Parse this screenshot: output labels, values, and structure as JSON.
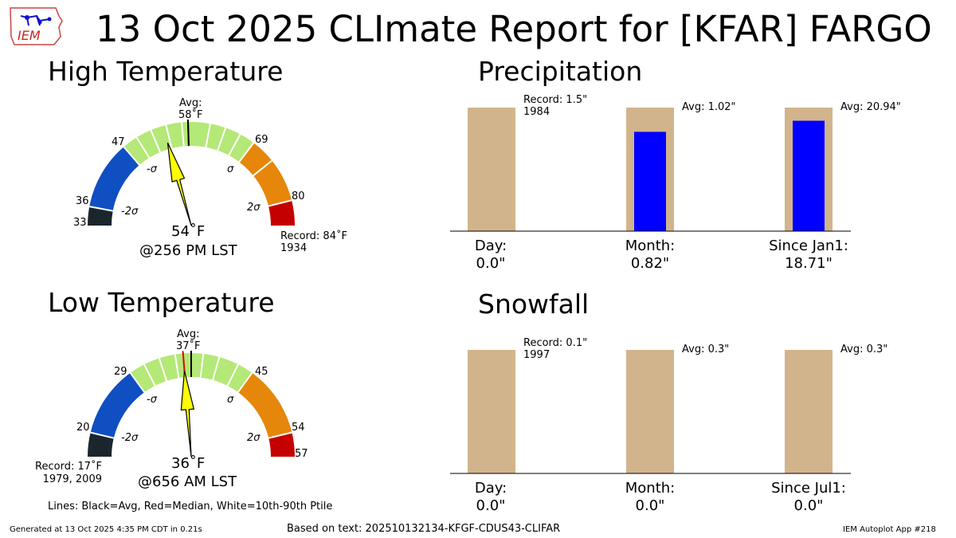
{
  "header": {
    "title": "13 Oct 2025 CLImate Report for [KFAR] FARGO",
    "logo_text": "IEM"
  },
  "high_temp": {
    "title": "High Temperature",
    "avg_label": "Avg:",
    "avg_value": "58$^\\circ$F",
    "avg_text": "58˚F",
    "ticks": [
      {
        "label": "33",
        "value": 33
      },
      {
        "label": "36",
        "value": 36
      },
      {
        "label": "47",
        "value": 47
      },
      {
        "label": "69",
        "value": 69
      },
      {
        "label": "80",
        "value": 80
      }
    ],
    "sigma_labels": {
      "m2": "-2σ",
      "m1": "-σ",
      "p1": "σ",
      "p2": "2σ"
    },
    "observed_text": "54˚F",
    "observed_value": 54,
    "time_text": "@256 PM LST",
    "record_text": "Record: 84˚F",
    "record_year": "1934",
    "range_min": 33,
    "range_max": 84,
    "bands": [
      {
        "from": 33,
        "to": 36,
        "color": "#1b262c"
      },
      {
        "from": 36,
        "to": 47,
        "color": "#0f4fc1"
      },
      {
        "from": 47,
        "to": 69,
        "color": "#b4e877"
      },
      {
        "from": 69,
        "to": 73,
        "color": "#e6860a"
      },
      {
        "from": 73,
        "to": 80,
        "color": "#e6860a"
      },
      {
        "from": 80,
        "to": 84,
        "color": "#c40000"
      }
    ],
    "avg": 58,
    "median": 58,
    "white_lines": [
      49.5,
      52,
      54.5,
      57,
      61.5,
      64,
      66.5
    ]
  },
  "low_temp": {
    "title": "Low Temperature",
    "avg_label": "Avg:",
    "avg_text": "37˚F",
    "ticks": [
      {
        "label": "20",
        "value": 20
      },
      {
        "label": "29",
        "value": 29
      },
      {
        "label": "45",
        "value": 45
      },
      {
        "label": "54",
        "value": 54
      },
      {
        "label": "57",
        "value": 57
      }
    ],
    "sigma_labels": {
      "m2": "-2σ",
      "m1": "-σ",
      "p1": "σ",
      "p2": "2σ"
    },
    "observed_text": "36˚F",
    "observed_value": 36,
    "time_text": "@656 AM LST",
    "record_text": "Record: 17˚F",
    "record_year": "1979, 2009",
    "range_min": 17,
    "range_max": 57,
    "bands": [
      {
        "from": 17,
        "to": 20,
        "color": "#1b262c"
      },
      {
        "from": 20,
        "to": 29,
        "color": "#0f4fc1"
      },
      {
        "from": 29,
        "to": 45,
        "color": "#b4e877"
      },
      {
        "from": 45,
        "to": 54,
        "color": "#e6860a"
      },
      {
        "from": 54,
        "to": 57,
        "color": "#c40000"
      }
    ],
    "avg": 37,
    "median": 36,
    "white_lines": [
      31,
      33,
      35,
      38.5,
      40.5,
      43
    ]
  },
  "precip": {
    "title": "Precipitation",
    "annotations": [
      "Record: 1.5\"",
      "1984",
      "Avg: 1.02\"",
      "Avg: 20.94\""
    ],
    "labels": [
      {
        "name": "Day:",
        "value": "0.0\""
      },
      {
        "name": "Month:",
        "value": "0.82\""
      },
      {
        "name": "Since Jan1:",
        "value": "18.71\""
      }
    ]
  },
  "snow": {
    "title": "Snowfall",
    "annotations": [
      "Record: 0.1\"",
      "1997",
      "Avg: 0.3\"",
      "Avg: 0.3\""
    ],
    "labels": [
      {
        "name": "Day:",
        "value": "0.0\""
      },
      {
        "name": "Month:",
        "value": "0.0\""
      },
      {
        "name": "Since Jul1:",
        "value": "0.0\""
      }
    ]
  },
  "chart_data": [
    {
      "type": "bar",
      "title": "Precipitation",
      "categories": [
        "Day:",
        "Month:",
        "Since Jan1:"
      ],
      "series": [
        {
          "name": "background",
          "values": [
            1.5,
            1.02,
            20.94
          ]
        },
        {
          "name": "observed",
          "values": [
            0.0,
            0.82,
            18.71
          ]
        }
      ],
      "record": 1.5,
      "record_year": "1984",
      "avg": [
        null,
        1.02,
        20.94
      ],
      "colors": {
        "background": "#d2b48c",
        "observed": "#0000ff"
      }
    },
    {
      "type": "bar",
      "title": "Snowfall",
      "categories": [
        "Day:",
        "Month:",
        "Since Jul1:"
      ],
      "series": [
        {
          "name": "background",
          "values": [
            0.1,
            0.3,
            0.3
          ]
        },
        {
          "name": "observed",
          "values": [
            0.0,
            0.0,
            0.0
          ]
        }
      ],
      "record": 0.1,
      "record_year": "1997",
      "avg": [
        null,
        0.3,
        0.3
      ],
      "colors": {
        "background": "#d2b48c",
        "observed": "#0000ff"
      }
    }
  ],
  "footer": {
    "lines_note": "Lines: Black=Avg, Red=Median, White=10th-90th Ptile",
    "generated": "Generated at 13 Oct 2025 4:35 PM CDT in 0.21s",
    "based_on": "Based on text: 202510132134-KFGF-CDUS43-CLIFAR",
    "app": "IEM Autoplot App #218"
  }
}
